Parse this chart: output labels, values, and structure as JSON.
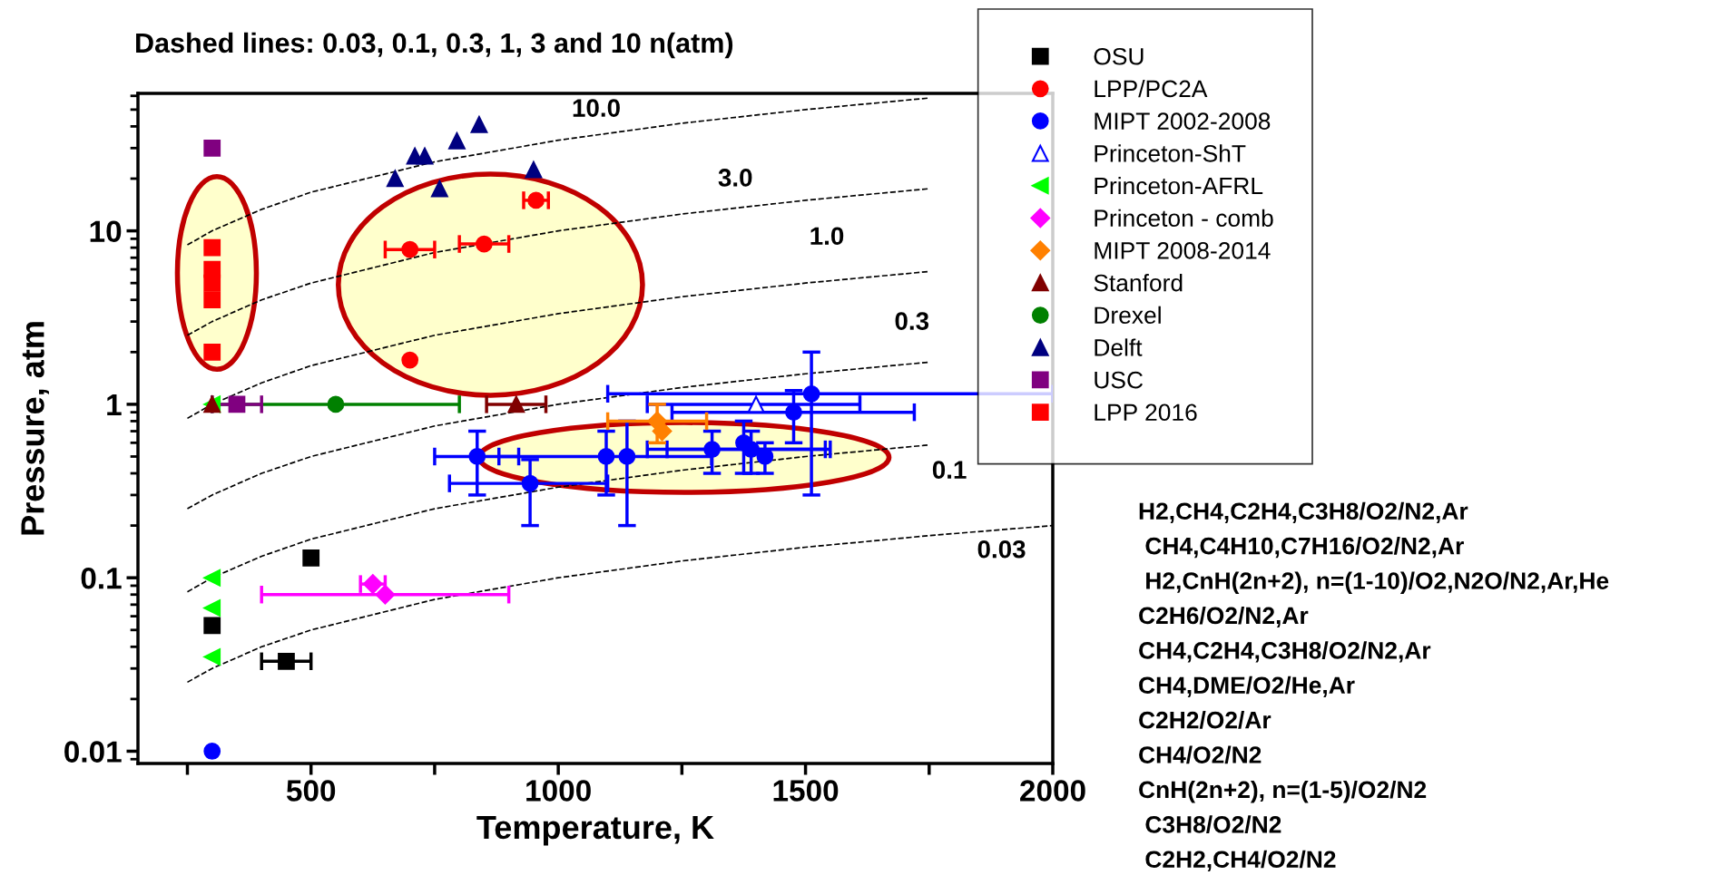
{
  "chart_data": {
    "type": "scatter",
    "title": "Dashed lines: 0.03, 0.1, 0.3, 1, 3 and 10 n(atm)",
    "xlabel": "Temperature, K",
    "ylabel": "Pressure, atm",
    "xlim": [
      150,
      2000
    ],
    "ylim": [
      0.0085,
      62
    ],
    "log": "y",
    "grid": false,
    "legend": "top right",
    "xticks": [
      {
        "value": 250,
        "label": null
      },
      500,
      {
        "value": 750,
        "label": null
      },
      1000,
      {
        "value": 1250,
        "label": null
      },
      1500,
      {
        "value": 1750,
        "label": null
      },
      2000
    ],
    "yticks": [
      0.01,
      0.1,
      1,
      10
    ],
    "series": [
      {
        "type": "line",
        "name": "0.03",
        "line_style": "dashed",
        "marker": "none",
        "color": "#000000",
        "x": [
          250,
          300,
          400,
          500,
          750,
          1000,
          1250,
          1500,
          1750,
          2000
        ],
        "values": [
          0.025,
          0.03,
          0.04,
          0.05,
          0.075,
          0.1,
          0.125,
          0.15,
          0.175,
          0.2
        ]
      },
      {
        "type": "line",
        "name": "0.1",
        "line_style": "dashed",
        "marker": "none",
        "color": "#000000",
        "x": [
          250,
          300,
          400,
          500,
          750,
          1000,
          1250,
          1500,
          1750
        ],
        "values": [
          0.083,
          0.1,
          0.133,
          0.167,
          0.25,
          0.333,
          0.417,
          0.5,
          0.583
        ]
      },
      {
        "type": "line",
        "name": "0.3",
        "line_style": "dashed",
        "marker": "none",
        "color": "#000000",
        "x": [
          250,
          300,
          400,
          500,
          750,
          1000,
          1250,
          1500,
          1750
        ],
        "values": [
          0.25,
          0.3,
          0.4,
          0.5,
          0.75,
          1,
          1.25,
          1.5,
          1.75
        ]
      },
      {
        "type": "line",
        "name": "1.0",
        "line_style": "dashed",
        "marker": "none",
        "color": "#000000",
        "x": [
          250,
          300,
          400,
          500,
          750,
          1000,
          1250,
          1500,
          1750
        ],
        "values": [
          0.83,
          1,
          1.33,
          1.67,
          2.5,
          3.33,
          4.17,
          5,
          5.83
        ]
      },
      {
        "type": "line",
        "name": "3.0",
        "line_style": "dashed",
        "marker": "none",
        "color": "#000000",
        "x": [
          250,
          300,
          400,
          500,
          750,
          1000,
          1250,
          1500,
          1750
        ],
        "values": [
          2.5,
          3,
          4,
          5,
          7.5,
          10,
          12.5,
          15,
          17.5
        ]
      },
      {
        "type": "line",
        "name": "10.0",
        "line_style": "dashed",
        "marker": "none",
        "color": "#000000",
        "x": [
          250,
          300,
          400,
          500,
          750,
          1000,
          1250,
          1500,
          1750
        ],
        "values": [
          8.3,
          10,
          13.3,
          16.7,
          25,
          33.3,
          41.7,
          50,
          58.3
        ]
      },
      {
        "name": "OSU",
        "marker": "square",
        "color": "#000000",
        "x": [
          300,
          450,
          500
        ],
        "values": [
          0.053,
          0.033,
          0.13
        ],
        "xerrors": [
          null,
          50,
          null
        ]
      },
      {
        "name": "LPP/PC2A",
        "marker": "circle",
        "color": "#ff0000",
        "x": [
          700,
          850,
          955,
          700
        ],
        "values": [
          7.8,
          8.4,
          15,
          1.8
        ],
        "xerrors": [
          50,
          50,
          25,
          null
        ]
      },
      {
        "name": "MIPT 2002-2008",
        "marker": "circle",
        "color": "#0000ff",
        "x": [
          300,
          836,
          943,
          1097,
          1139,
          1311,
          1375,
          1390,
          1418,
          1476,
          1512
        ],
        "values": [
          0.01,
          0.5,
          0.35,
          0.5,
          0.5,
          0.55,
          0.6,
          0.55,
          0.5,
          0.9,
          1.15
        ],
        "errors": [
          null,
          [
            0.3,
            0.7
          ],
          [
            0.2,
            0.48
          ],
          [
            0.3,
            0.7
          ],
          [
            0.2,
            0.8
          ],
          [
            0.4,
            0.7
          ],
          [
            0.4,
            0.8
          ],
          [
            0.4,
            0.7
          ],
          [
            0.4,
            0.6
          ],
          [
            0.6,
            1.2
          ],
          [
            0.3,
            2.0
          ]
        ],
        "xerrors": [
          null,
          [
            750,
            920
          ],
          [
            780,
            1100
          ],
          [
            880,
            1310
          ],
          null,
          [
            1180,
            1550
          ],
          null,
          [
            1220,
            1540
          ],
          null,
          [
            1230,
            1720
          ],
          [
            1100,
            2000
          ]
        ]
      },
      {
        "name": "Princeton-ShT",
        "marker": "triangle",
        "color": "#0000ff",
        "x": [
          1400
        ],
        "values": [
          1.0
        ],
        "xerrors": [
          [
            1180,
            1610
          ]
        ]
      },
      {
        "name": "Princeton-AFRL",
        "marker": "triangle",
        "color": "#00ff00",
        "x": [
          300,
          300,
          300,
          300
        ],
        "values": [
          1,
          0.1,
          0.067,
          0.035
        ]
      },
      {
        "name": "Princeton - comb",
        "marker": "diamond",
        "color": "#ff00ff",
        "x": [
          625,
          650
        ],
        "values": [
          0.092,
          0.08
        ],
        "xerrors": [
          25,
          250
        ]
      },
      {
        "name": "MIPT 2008-2014",
        "marker": "diamond",
        "color": "#ff8000",
        "x": [
          1200,
          1210
        ],
        "values": [
          0.8,
          0.7
        ],
        "errors": [
          [
            0.6,
            1.0
          ],
          null
        ],
        "xerrors": [
          100,
          null
        ]
      },
      {
        "name": "Stanford",
        "marker": "triangle",
        "color": "#800000",
        "x": [
          300,
          915
        ],
        "values": [
          1,
          1
        ],
        "xerrors": [
          null,
          60
        ]
      },
      {
        "name": "Drexel",
        "marker": "circle",
        "color": "#008000",
        "x": [
          550
        ],
        "values": [
          1
        ],
        "xerrors": [
          250
        ]
      },
      {
        "name": "Delft",
        "marker": "triangle",
        "color": "#000080",
        "x": [
          670,
          710,
          730,
          795,
          840,
          760,
          950
        ],
        "values": [
          20,
          27,
          27,
          33,
          41,
          17.5,
          22.5
        ]
      },
      {
        "name": "USC",
        "marker": "square",
        "color": "#800080",
        "x": [
          300,
          350
        ],
        "values": [
          30,
          1
        ],
        "xerrors": [
          null,
          50
        ]
      },
      {
        "name": "LPP 2016",
        "marker": "square",
        "color": "#ff0000",
        "x": [
          300,
          300,
          300,
          300,
          300
        ],
        "values": [
          8,
          6,
          5,
          4,
          2
        ]
      }
    ],
    "annotations": [
      "H2,CH4,C2H4,C3H8/O2/N2,Ar",
      " CH4,C4H10,C7H16/O2/N2,Ar",
      " H2,CnH(2n+2), n=(1-10)/O2,N2O/N2,Ar,He",
      "C2H6/O2/N2,Ar",
      "CH4,C2H4,C3H8/O2/N2,Ar",
      "CH4,DME/O2/He,Ar",
      "C2H2/O2/Ar",
      "CH4/O2/N2",
      "CnH(2n+2), n=(1-5)/O2/N2",
      " C3H8/O2/N2",
      " C2H2,CH4/O2/N2"
    ]
  }
}
